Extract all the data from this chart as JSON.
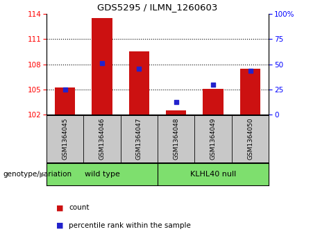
{
  "title": "GDS5295 / ILMN_1260603",
  "samples": [
    "GSM1364045",
    "GSM1364046",
    "GSM1364047",
    "GSM1364048",
    "GSM1364049",
    "GSM1364050"
  ],
  "bar_heights": [
    105.2,
    113.5,
    109.5,
    102.5,
    105.1,
    107.5
  ],
  "percentile_values": [
    105.0,
    108.1,
    107.5,
    103.5,
    105.6,
    107.2
  ],
  "bar_color": "#cc1111",
  "dot_color": "#2222cc",
  "ylim_left": [
    102,
    114
  ],
  "ylim_right": [
    0,
    100
  ],
  "yticks_left": [
    102,
    105,
    108,
    111,
    114
  ],
  "yticks_right": [
    0,
    25,
    50,
    75,
    100
  ],
  "yticklabels_right": [
    "0",
    "25",
    "50",
    "75",
    "100%"
  ],
  "hlines": [
    105,
    108,
    111
  ],
  "groups": [
    {
      "label": "wild type",
      "indices": [
        0,
        1,
        2
      ]
    },
    {
      "label": "KLHL40 null",
      "indices": [
        3,
        4,
        5
      ]
    }
  ],
  "group_label_prefix": "genotype/variation",
  "bar_bottom": 102,
  "bar_width": 0.55,
  "tick_label_area_color": "#c8c8c8",
  "group_area_color": "#7edf6e",
  "legend_count_label": "count",
  "legend_pct_label": "percentile rank within the sample"
}
